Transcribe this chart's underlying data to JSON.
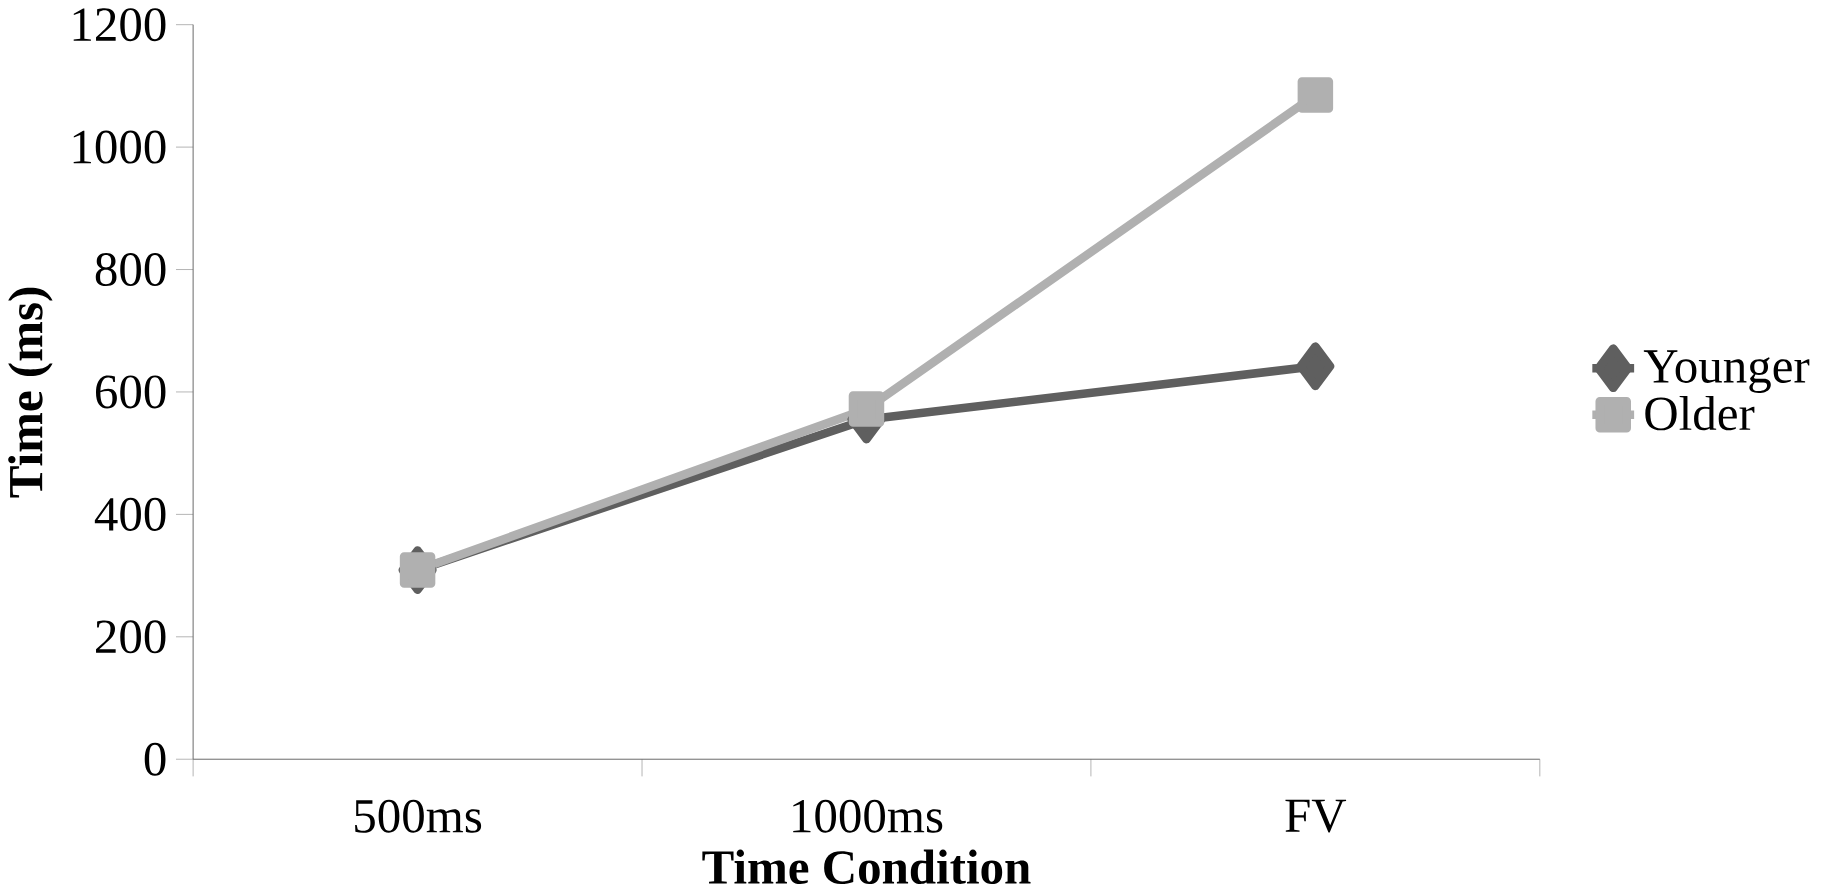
{
  "chart_data": {
    "type": "line",
    "xlabel": "Time Condition",
    "ylabel": "Time (ms)",
    "categories": [
      "500ms",
      "1000ms",
      "FV"
    ],
    "series": [
      {
        "name": "Younger",
        "color": "#5f5f5f",
        "values": [
          309,
          555,
          642
        ],
        "marker": "diamond"
      },
      {
        "name": "Older",
        "color": "#b0b0b0",
        "values": [
          309,
          572,
          1085
        ],
        "marker": "square"
      }
    ],
    "ylim": [
      0,
      1200
    ],
    "yticks": [
      0,
      200,
      400,
      600,
      800,
      1000,
      1200
    ],
    "grid": false,
    "legend": "right",
    "line_style": "solid"
  }
}
